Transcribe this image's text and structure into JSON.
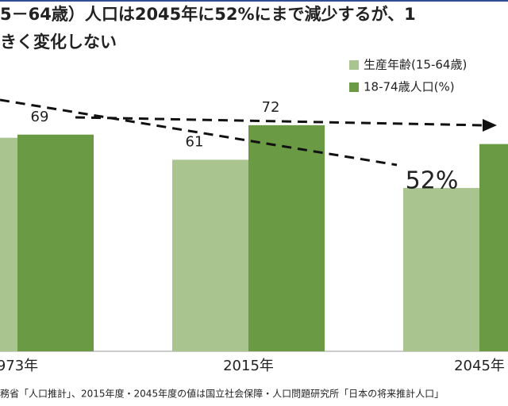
{
  "chart_data": {
    "type": "bar",
    "title": "5－64歳）人口は2045年に52%にまで減少するが、1",
    "subtitle": "きく変化しない",
    "categories": [
      "973年",
      "2015年",
      "2045年"
    ],
    "series": [
      {
        "name": "生産年齢(15-64歳)",
        "color": "#a9c48e",
        "values": [
          68,
          61,
          52
        ],
        "value_labels": [
          null,
          "61",
          "52%"
        ]
      },
      {
        "name": "18-74歳人口(%)",
        "color": "#6b9a45",
        "values": [
          69,
          72,
          66
        ],
        "value_labels": [
          "69",
          "72",
          null
        ]
      }
    ],
    "ylim": [
      0,
      100
    ],
    "note": "務省「人口推計」、2015年度・2045年度の値は国立社会保障・人口問題研究所「日本の将来推計人口」"
  }
}
